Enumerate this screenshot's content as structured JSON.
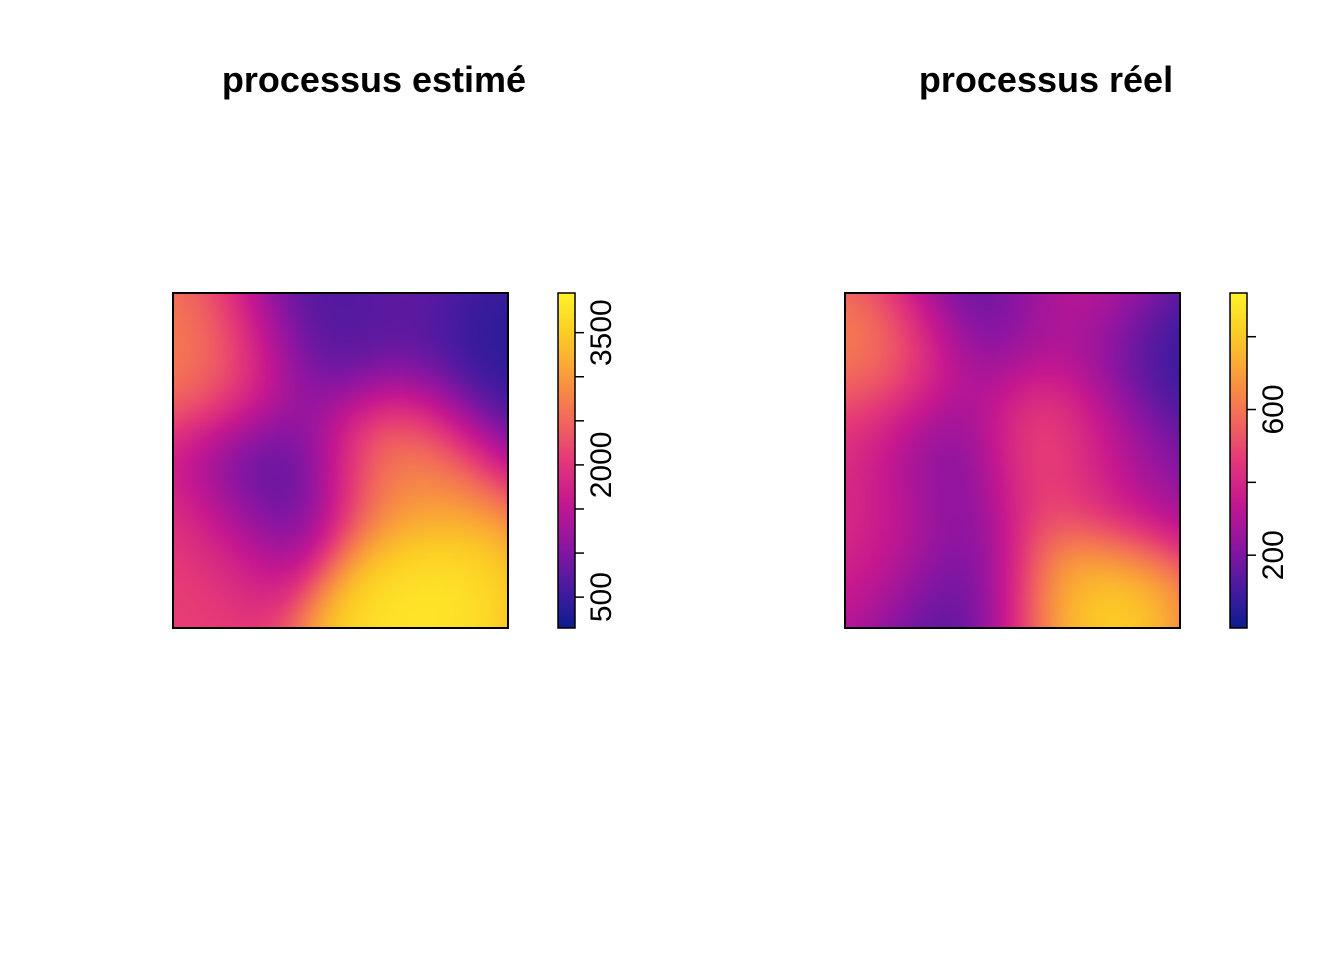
{
  "palette": [
    "#0d1c8e",
    "#4b1aa0",
    "#8f15a1",
    "#c51790",
    "#e43878",
    "#f26a5a",
    "#f99b3c",
    "#fccb25",
    "#fff22a"
  ],
  "chart_data": [
    {
      "type": "heatmap",
      "title": "processus estimé",
      "colorbar": {
        "range": [
          150,
          3950
        ],
        "ticks": [
          500,
          1000,
          1500,
          2000,
          2500,
          3000,
          3500
        ],
        "labeled_ticks": [
          "500",
          "2000",
          "3500"
        ]
      },
      "blobs": [
        {
          "x": 0.14,
          "y": 0.8,
          "value": 2900
        },
        {
          "x": 0.67,
          "y": 0.5,
          "value": 3000
        },
        {
          "x": 0.72,
          "y": 0.08,
          "value": 3950
        },
        {
          "x": 0.07,
          "y": 0.25,
          "value": 2200
        },
        {
          "x": 0.3,
          "y": 0.45,
          "value": 200
        },
        {
          "x": 0.44,
          "y": 0.9,
          "value": 200
        },
        {
          "x": 0.94,
          "y": 0.8,
          "value": 200
        },
        {
          "x": 0.6,
          "y": 0.97,
          "value": 900
        }
      ],
      "background_value": 1900
    },
    {
      "type": "heatmap",
      "title": "processus réel",
      "colorbar": {
        "range": [
          0,
          920
        ],
        "ticks": [
          200,
          400,
          600,
          800
        ],
        "labeled_ticks": [
          "200",
          "600"
        ]
      },
      "blobs": [
        {
          "x": 0.13,
          "y": 0.8,
          "value": 720
        },
        {
          "x": 0.62,
          "y": 0.55,
          "value": 740
        },
        {
          "x": 0.7,
          "y": 0.1,
          "value": 920
        },
        {
          "x": 0.68,
          "y": 0.98,
          "value": 450
        },
        {
          "x": 0.02,
          "y": 0.45,
          "value": 480
        },
        {
          "x": 0.1,
          "y": 0.25,
          "value": 420
        },
        {
          "x": 0.3,
          "y": 0.52,
          "value": 40
        },
        {
          "x": 0.9,
          "y": 0.8,
          "value": 20
        },
        {
          "x": 0.42,
          "y": 0.95,
          "value": 40
        },
        {
          "x": 0.8,
          "y": 0.48,
          "value": 180
        },
        {
          "x": 0.35,
          "y": 0.1,
          "value": 60
        }
      ],
      "background_value": 140
    }
  ]
}
